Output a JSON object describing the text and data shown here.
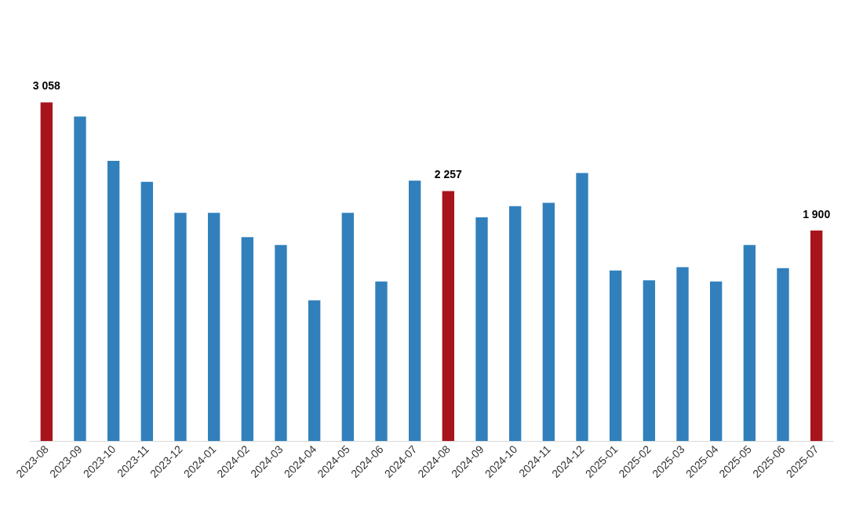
{
  "chart_data": {
    "type": "bar",
    "categories": [
      "2023-08",
      "2023-09",
      "2023-10",
      "2023-11",
      "2023-12",
      "2024-01",
      "2024-02",
      "2024-03",
      "2024-04",
      "2024-05",
      "2024-06",
      "2024-07",
      "2024-08",
      "2024-09",
      "2024-10",
      "2024-11",
      "2024-12",
      "2025-01",
      "2025-02",
      "2025-03",
      "2025-04",
      "2025-05",
      "2025-06",
      "2025-07"
    ],
    "values": [
      3058,
      2930,
      2530,
      2340,
      2060,
      2060,
      1840,
      1770,
      1270,
      2060,
      1440,
      2350,
      2257,
      2020,
      2120,
      2150,
      2420,
      1540,
      1450,
      1570,
      1440,
      1770,
      1560,
      1900
    ],
    "colors": [
      "#a8141c",
      "#3180bc",
      "#3180bc",
      "#3180bc",
      "#3180bc",
      "#3180bc",
      "#3180bc",
      "#3180bc",
      "#3180bc",
      "#3180bc",
      "#3180bc",
      "#3180bc",
      "#a8141c",
      "#3180bc",
      "#3180bc",
      "#3180bc",
      "#3180bc",
      "#3180bc",
      "#3180bc",
      "#3180bc",
      "#3180bc",
      "#3180bc",
      "#3180bc",
      "#a8141c"
    ],
    "value_labels": [
      "3 058",
      null,
      null,
      null,
      null,
      null,
      null,
      null,
      null,
      null,
      null,
      null,
      "2 257",
      null,
      null,
      null,
      null,
      null,
      null,
      null,
      null,
      null,
      null,
      "1 900"
    ],
    "grid": false
  }
}
